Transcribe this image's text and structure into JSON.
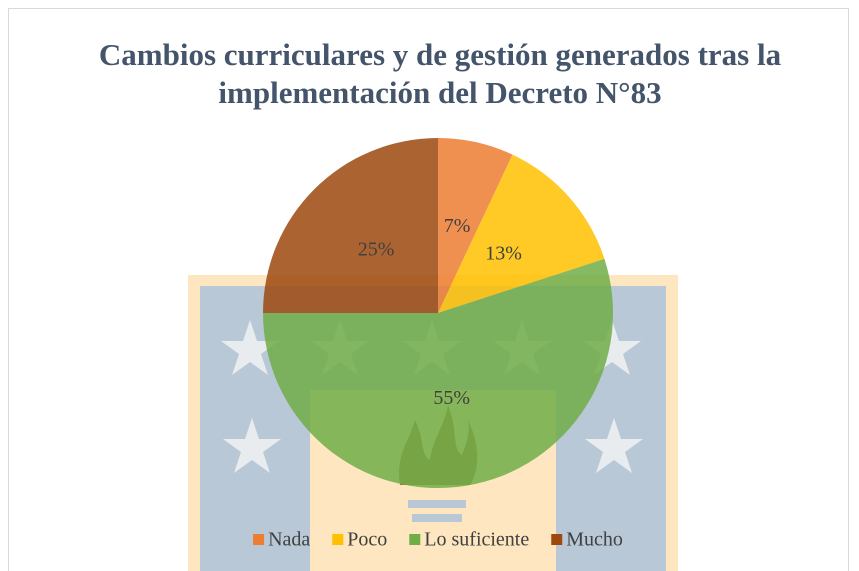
{
  "chart_data": {
    "type": "pie",
    "title": "Cambios curriculares y de gestión generados tras la implementación del Decreto N°83",
    "categories": [
      "Nada",
      "Poco",
      "Lo suficiente",
      "Mucho"
    ],
    "values": [
      7,
      13,
      55,
      25
    ],
    "value_labels": [
      "7%",
      "13%",
      "55%",
      "25%"
    ],
    "colors": [
      "#ed7d31",
      "#ffc000",
      "#70ad47",
      "#9e480e"
    ],
    "legend": "bottom"
  }
}
